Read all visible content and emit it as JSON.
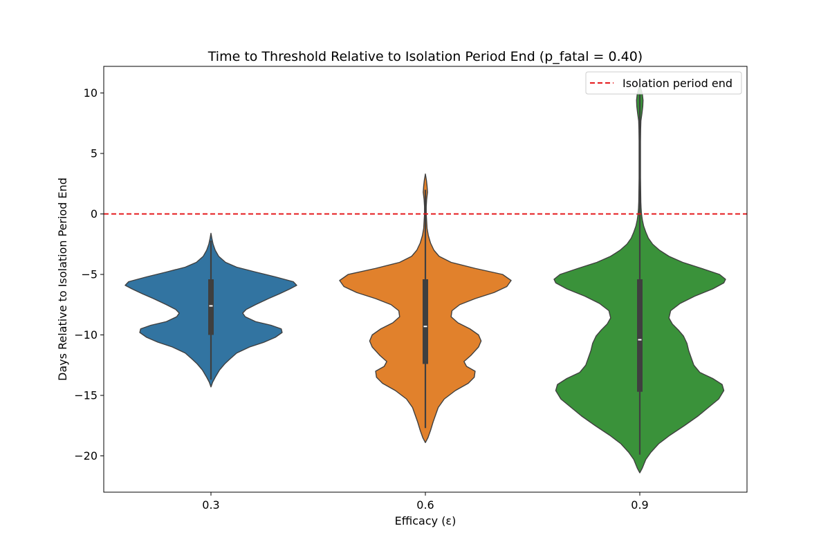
{
  "chart_data": {
    "type": "violin",
    "title": "Time to Threshold Relative to Isolation Period End (p_fatal = 0.40)",
    "xlabel": "Efficacy (ε)",
    "ylabel": "Days Relative to Isolation Period End",
    "ylim": [
      -23,
      12.2
    ],
    "yticks": [
      10,
      5,
      0,
      -5,
      -10,
      -15,
      -20
    ],
    "ytick_labels": [
      "10",
      "5",
      "0",
      "−5",
      "−10",
      "−15",
      "−20"
    ],
    "categories": [
      "0.3",
      "0.6",
      "0.9"
    ],
    "reference_line": {
      "value": 0,
      "label": "Isolation period end",
      "color": "#e41a1c",
      "style": "dashed"
    },
    "legend_position": "top-right",
    "series": [
      {
        "category": "0.3",
        "color": "#3274a1",
        "min": -13.7,
        "q1": -10.0,
        "median": -7.6,
        "q3": -5.4,
        "max": -2.2,
        "density": [
          [
            -14.3,
            0.0
          ],
          [
            -13.9,
            0.02
          ],
          [
            -13.5,
            0.05
          ],
          [
            -12.9,
            0.1
          ],
          [
            -12.4,
            0.16
          ],
          [
            -12.0,
            0.22
          ],
          [
            -11.5,
            0.3
          ],
          [
            -11.0,
            0.45
          ],
          [
            -10.6,
            0.62
          ],
          [
            -10.2,
            0.75
          ],
          [
            -9.8,
            0.83
          ],
          [
            -9.5,
            0.82
          ],
          [
            -9.2,
            0.7
          ],
          [
            -8.9,
            0.52
          ],
          [
            -8.5,
            0.4
          ],
          [
            -8.2,
            0.37
          ],
          [
            -7.9,
            0.41
          ],
          [
            -7.5,
            0.52
          ],
          [
            -7.0,
            0.67
          ],
          [
            -6.6,
            0.8
          ],
          [
            -6.2,
            0.92
          ],
          [
            -5.9,
            1.0
          ],
          [
            -5.6,
            0.96
          ],
          [
            -5.2,
            0.75
          ],
          [
            -4.8,
            0.52
          ],
          [
            -4.4,
            0.3
          ],
          [
            -4.0,
            0.17
          ],
          [
            -3.5,
            0.09
          ],
          [
            -3.0,
            0.05
          ],
          [
            -2.5,
            0.025
          ],
          [
            -2.0,
            0.01
          ],
          [
            -1.6,
            0.0
          ]
        ]
      },
      {
        "category": "0.6",
        "color": "#e1812c",
        "min": -17.7,
        "q1": -12.4,
        "median": -9.3,
        "q3": -5.4,
        "max": 2.0,
        "density": [
          [
            -18.9,
            0.0
          ],
          [
            -18.5,
            0.03
          ],
          [
            -17.9,
            0.06
          ],
          [
            -17.2,
            0.09
          ],
          [
            -16.6,
            0.12
          ],
          [
            -16.0,
            0.15
          ],
          [
            -15.3,
            0.22
          ],
          [
            -14.6,
            0.35
          ],
          [
            -14.0,
            0.5
          ],
          [
            -13.5,
            0.57
          ],
          [
            -13.0,
            0.58
          ],
          [
            -12.6,
            0.48
          ],
          [
            -12.2,
            0.45
          ],
          [
            -11.7,
            0.53
          ],
          [
            -11.0,
            0.62
          ],
          [
            -10.5,
            0.65
          ],
          [
            -10.0,
            0.62
          ],
          [
            -9.5,
            0.52
          ],
          [
            -9.0,
            0.38
          ],
          [
            -8.5,
            0.3
          ],
          [
            -8.0,
            0.31
          ],
          [
            -7.5,
            0.4
          ],
          [
            -7.0,
            0.58
          ],
          [
            -6.5,
            0.8
          ],
          [
            -6.0,
            0.95
          ],
          [
            -5.5,
            1.0
          ],
          [
            -5.0,
            0.9
          ],
          [
            -4.5,
            0.58
          ],
          [
            -4.0,
            0.3
          ],
          [
            -3.5,
            0.16
          ],
          [
            -3.0,
            0.1
          ],
          [
            -2.4,
            0.06
          ],
          [
            -1.8,
            0.035
          ],
          [
            -1.2,
            0.02
          ],
          [
            -0.6,
            0.015
          ],
          [
            0.0,
            0.01
          ],
          [
            0.6,
            0.01
          ],
          [
            1.2,
            0.015
          ],
          [
            1.8,
            0.025
          ],
          [
            2.3,
            0.02
          ],
          [
            2.8,
            0.012
          ],
          [
            3.3,
            0.0
          ]
        ]
      },
      {
        "category": "0.9",
        "color": "#3a923a",
        "min": -19.9,
        "q1": -14.7,
        "median": -10.4,
        "q3": -5.4,
        "max": 10.0,
        "density": [
          [
            -21.4,
            0.0
          ],
          [
            -21.0,
            0.03
          ],
          [
            -20.3,
            0.07
          ],
          [
            -19.7,
            0.13
          ],
          [
            -19.0,
            0.22
          ],
          [
            -18.3,
            0.35
          ],
          [
            -17.5,
            0.52
          ],
          [
            -16.7,
            0.68
          ],
          [
            -16.0,
            0.8
          ],
          [
            -15.3,
            0.92
          ],
          [
            -14.6,
            0.98
          ],
          [
            -14.1,
            0.96
          ],
          [
            -13.6,
            0.85
          ],
          [
            -13.1,
            0.7
          ],
          [
            -12.5,
            0.63
          ],
          [
            -11.9,
            0.6
          ],
          [
            -11.3,
            0.57
          ],
          [
            -10.7,
            0.55
          ],
          [
            -10.1,
            0.51
          ],
          [
            -9.6,
            0.45
          ],
          [
            -9.1,
            0.38
          ],
          [
            -8.6,
            0.34
          ],
          [
            -8.0,
            0.36
          ],
          [
            -7.4,
            0.47
          ],
          [
            -6.8,
            0.64
          ],
          [
            -6.2,
            0.85
          ],
          [
            -5.7,
            0.98
          ],
          [
            -5.4,
            1.0
          ],
          [
            -5.0,
            0.93
          ],
          [
            -4.5,
            0.72
          ],
          [
            -4.0,
            0.5
          ],
          [
            -3.5,
            0.34
          ],
          [
            -3.0,
            0.23
          ],
          [
            -2.5,
            0.15
          ],
          [
            -2.0,
            0.1
          ],
          [
            -1.5,
            0.07
          ],
          [
            -1.0,
            0.045
          ],
          [
            -0.5,
            0.03
          ],
          [
            0.0,
            0.02
          ],
          [
            0.5,
            0.015
          ],
          [
            1.0,
            0.012
          ],
          [
            2.0,
            0.01
          ],
          [
            3.0,
            0.008
          ],
          [
            4.0,
            0.008
          ],
          [
            5.0,
            0.008
          ],
          [
            6.0,
            0.008
          ],
          [
            7.0,
            0.01
          ],
          [
            7.7,
            0.013
          ],
          [
            8.3,
            0.025
          ],
          [
            8.9,
            0.035
          ],
          [
            9.4,
            0.038
          ],
          [
            9.9,
            0.03
          ],
          [
            10.3,
            0.015
          ],
          [
            10.6,
            0.0
          ]
        ]
      }
    ]
  }
}
